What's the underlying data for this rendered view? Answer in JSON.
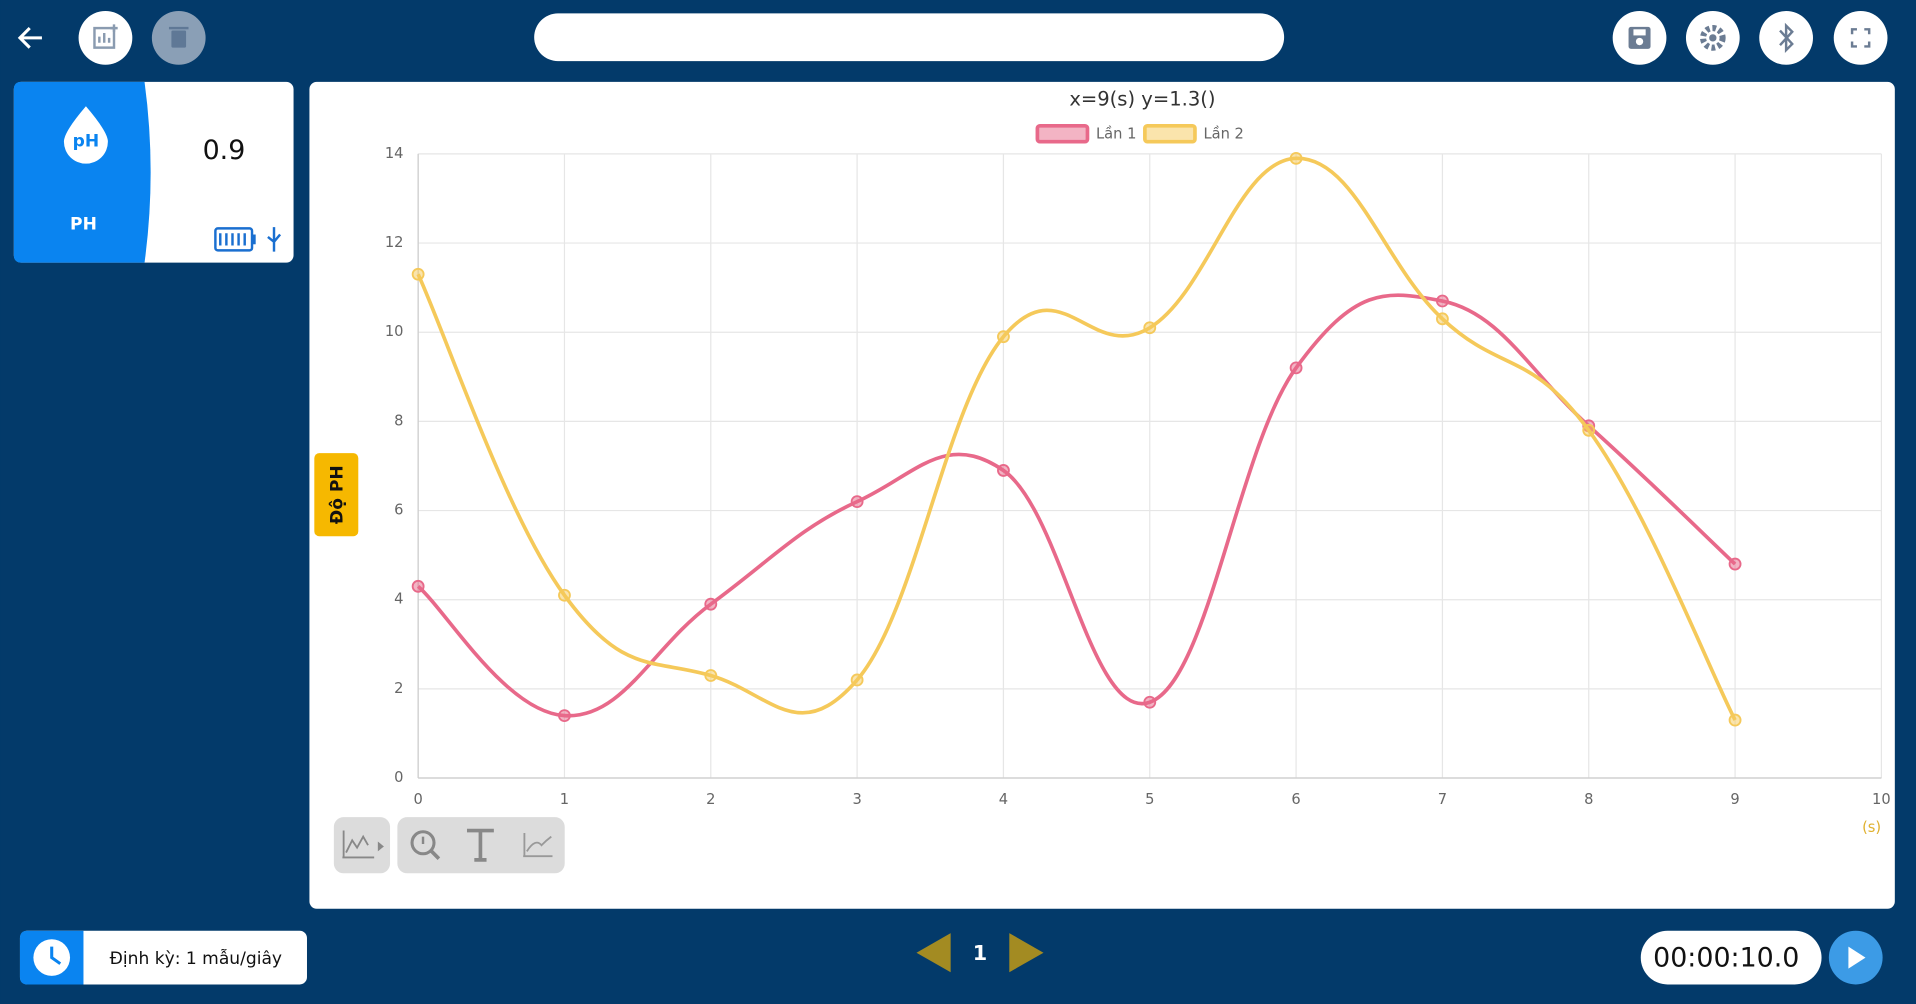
{
  "sensor": {
    "value": "0.9",
    "name": "PH"
  },
  "chart_data": {
    "type": "line",
    "title": "x=9(s) y=1.3()",
    "y_label": "Độ PH",
    "x_label": "(s)",
    "x": [
      0,
      1,
      2,
      3,
      4,
      5,
      6,
      7,
      8,
      9
    ],
    "series": [
      {
        "name": "Lần 1",
        "color": "#e8698a",
        "values": [
          4.3,
          1.4,
          3.9,
          6.2,
          6.9,
          1.7,
          9.2,
          10.7,
          7.9,
          4.8
        ]
      },
      {
        "name": "Lần 2",
        "color": "#f5c95a",
        "values": [
          11.3,
          4.1,
          2.3,
          2.2,
          9.9,
          10.1,
          13.9,
          10.3,
          7.8,
          1.3
        ]
      }
    ],
    "xlim": [
      0,
      10
    ],
    "xticks": [
      0,
      1,
      2,
      3,
      4,
      5,
      6,
      7,
      8,
      9,
      10
    ],
    "ylim": [
      0,
      14
    ],
    "yticks": [
      0,
      2,
      4,
      6,
      8,
      10,
      12,
      14
    ],
    "grid": true,
    "smooth": true
  },
  "footer": {
    "sampling": "Định kỳ: 1 mẫu/giây",
    "page": "1",
    "timer": "00:00:10.0"
  }
}
